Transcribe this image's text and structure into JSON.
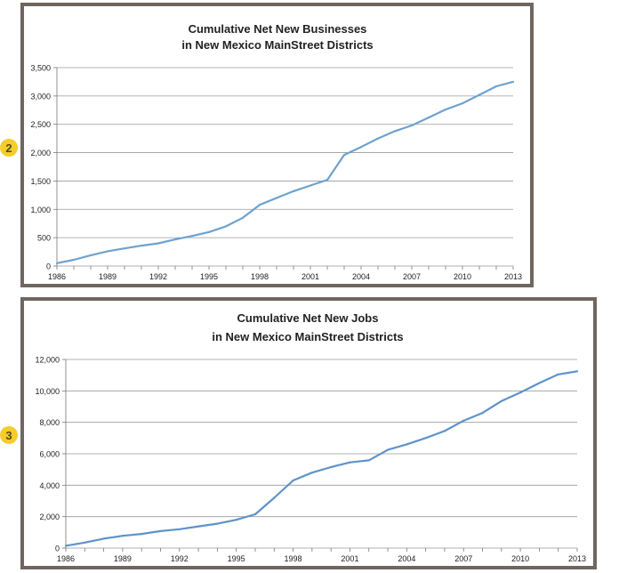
{
  "badges": [
    "2",
    "3"
  ],
  "chart_data": [
    {
      "type": "line",
      "title": "Cumulative Net New Businesses",
      "subtitle": "in New Mexico MainStreet Districts",
      "xlabel": "",
      "ylabel": "",
      "ylim": [
        0,
        3500
      ],
      "yticks": [
        0,
        500,
        1000,
        1500,
        2000,
        2500,
        3000,
        3500
      ],
      "ytick_labels": [
        "0",
        "500",
        "1,000",
        "1,500",
        "2,000",
        "2,500",
        "3,000",
        "3,500"
      ],
      "xlim": [
        1986,
        2013
      ],
      "xticks": [
        1986,
        1989,
        1992,
        1995,
        1998,
        2001,
        2004,
        2007,
        2010,
        2013
      ],
      "xtick_labels": [
        "1986",
        "1989",
        "1992",
        "1995",
        "1998",
        "2001",
        "2004",
        "2007",
        "2010",
        "2013"
      ],
      "grid": true,
      "line_color": "#6fa2cf",
      "series": [
        {
          "name": "Net New Businesses",
          "x": [
            1986,
            1987,
            1988,
            1989,
            1990,
            1991,
            1992,
            1993,
            1994,
            1995,
            1996,
            1997,
            1998,
            1999,
            2000,
            2001,
            2002,
            2003,
            2004,
            2005,
            2006,
            2007,
            2008,
            2009,
            2010,
            2011,
            2012,
            2013
          ],
          "values": [
            50,
            110,
            190,
            260,
            310,
            360,
            400,
            470,
            530,
            600,
            700,
            850,
            1080,
            1200,
            1320,
            1420,
            1520,
            1960,
            2100,
            2250,
            2380,
            2480,
            2620,
            2760,
            2870,
            3020,
            3170,
            3250
          ]
        }
      ]
    },
    {
      "type": "line",
      "title": "Cumulative Net New Jobs",
      "subtitle": "in New Mexico MainStreet Districts",
      "xlabel": "",
      "ylabel": "",
      "ylim": [
        0,
        12000
      ],
      "yticks": [
        0,
        2000,
        4000,
        6000,
        8000,
        10000,
        12000
      ],
      "ytick_labels": [
        "0",
        "2,000",
        "4,000",
        "6,000",
        "8,000",
        "10,000",
        "12,000"
      ],
      "xlim": [
        1986,
        2013
      ],
      "xticks": [
        1986,
        1989,
        1992,
        1995,
        1998,
        2001,
        2004,
        2007,
        2010,
        2013
      ],
      "xtick_labels": [
        "1986",
        "1989",
        "1992",
        "1995",
        "1998",
        "2001",
        "2004",
        "2007",
        "2010",
        "2013"
      ],
      "grid": true,
      "line_color": "#5f93c9",
      "series": [
        {
          "name": "Net New Jobs",
          "x": [
            1986,
            1987,
            1988,
            1989,
            1990,
            1991,
            1992,
            1993,
            1994,
            1995,
            1996,
            1997,
            1998,
            1999,
            2000,
            2001,
            2002,
            2003,
            2004,
            2005,
            2006,
            2007,
            2008,
            2009,
            2010,
            2011,
            2012,
            2013
          ],
          "values": [
            150,
            350,
            600,
            780,
            900,
            1080,
            1200,
            1380,
            1550,
            1800,
            2150,
            3200,
            4300,
            4800,
            5150,
            5450,
            5580,
            6250,
            6600,
            7000,
            7450,
            8100,
            8600,
            9350,
            9900,
            10500,
            11050,
            11250
          ]
        }
      ]
    }
  ]
}
